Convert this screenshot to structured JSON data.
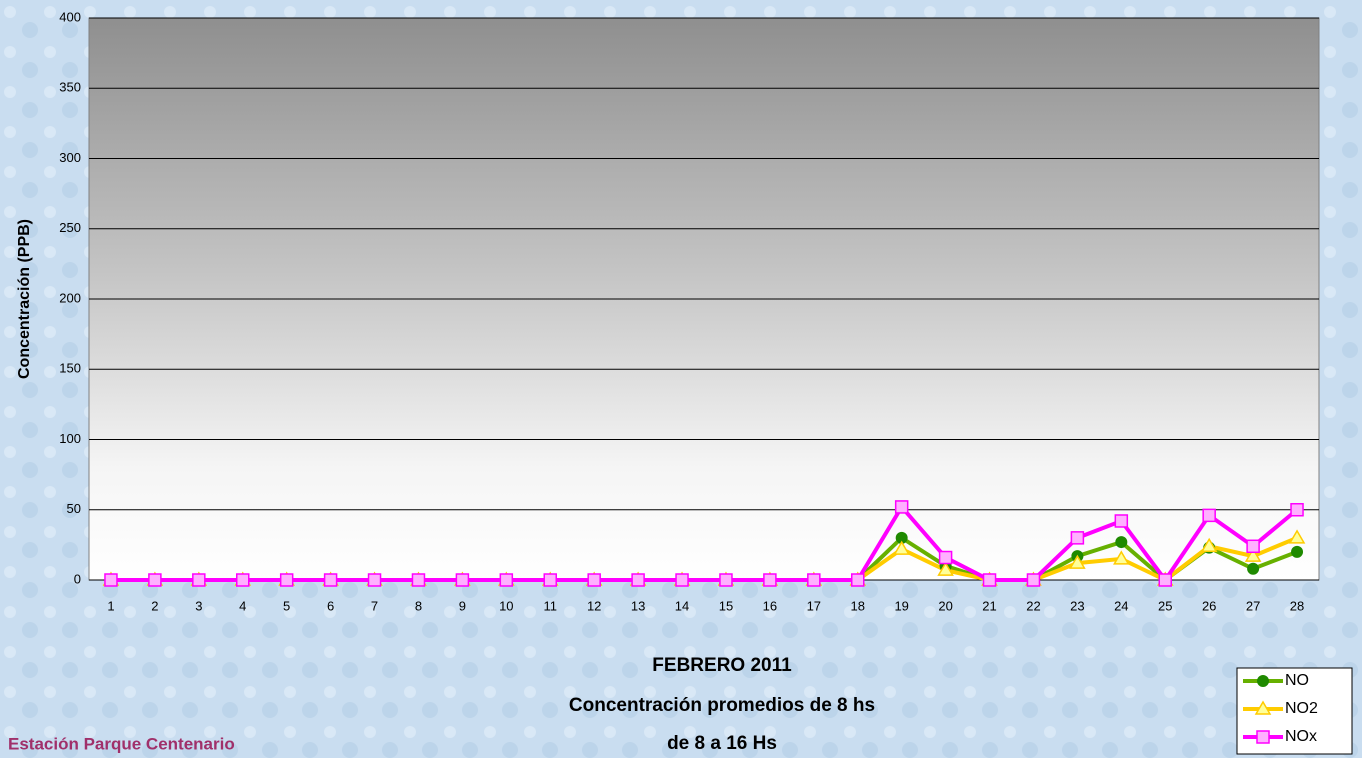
{
  "chart_data": {
    "type": "line",
    "title": [
      "FEBRERO 2011",
      "Concentración promedios de 8 hs",
      "de 8 a 16 Hs"
    ],
    "annotation": "Estación Parque Centenario",
    "y_label": "Concentración (PPB)",
    "categories": [
      "1",
      "2",
      "3",
      "4",
      "5",
      "6",
      "7",
      "8",
      "9",
      "10",
      "11",
      "12",
      "13",
      "14",
      "15",
      "16",
      "17",
      "18",
      "19",
      "20",
      "21",
      "22",
      "23",
      "24",
      "25",
      "26",
      "27",
      "28"
    ],
    "series": [
      {
        "name": "NO",
        "color": "#66b000",
        "marker": "circle",
        "values": [
          0,
          0,
          0,
          0,
          0,
          0,
          0,
          0,
          0,
          0,
          0,
          0,
          0,
          0,
          0,
          0,
          0,
          0,
          30,
          10,
          0,
          0,
          17,
          27,
          0,
          23,
          8,
          20
        ]
      },
      {
        "name": "NO2",
        "color": "#ffcc00",
        "marker": "triangle",
        "values": [
          0,
          0,
          0,
          0,
          0,
          0,
          0,
          0,
          0,
          0,
          0,
          0,
          0,
          0,
          0,
          0,
          0,
          0,
          22,
          7,
          0,
          0,
          12,
          15,
          0,
          24,
          17,
          30
        ]
      },
      {
        "name": "NOx",
        "color": "#ff00ff",
        "marker": "square",
        "values": [
          0,
          0,
          0,
          0,
          0,
          0,
          0,
          0,
          0,
          0,
          0,
          0,
          0,
          0,
          0,
          0,
          0,
          0,
          52,
          16,
          0,
          0,
          30,
          42,
          0,
          46,
          24,
          50
        ]
      }
    ],
    "ylim": [
      0,
      400
    ],
    "yticks": [
      0,
      50,
      100,
      150,
      200,
      250,
      300,
      350,
      400
    ],
    "grid": true
  }
}
